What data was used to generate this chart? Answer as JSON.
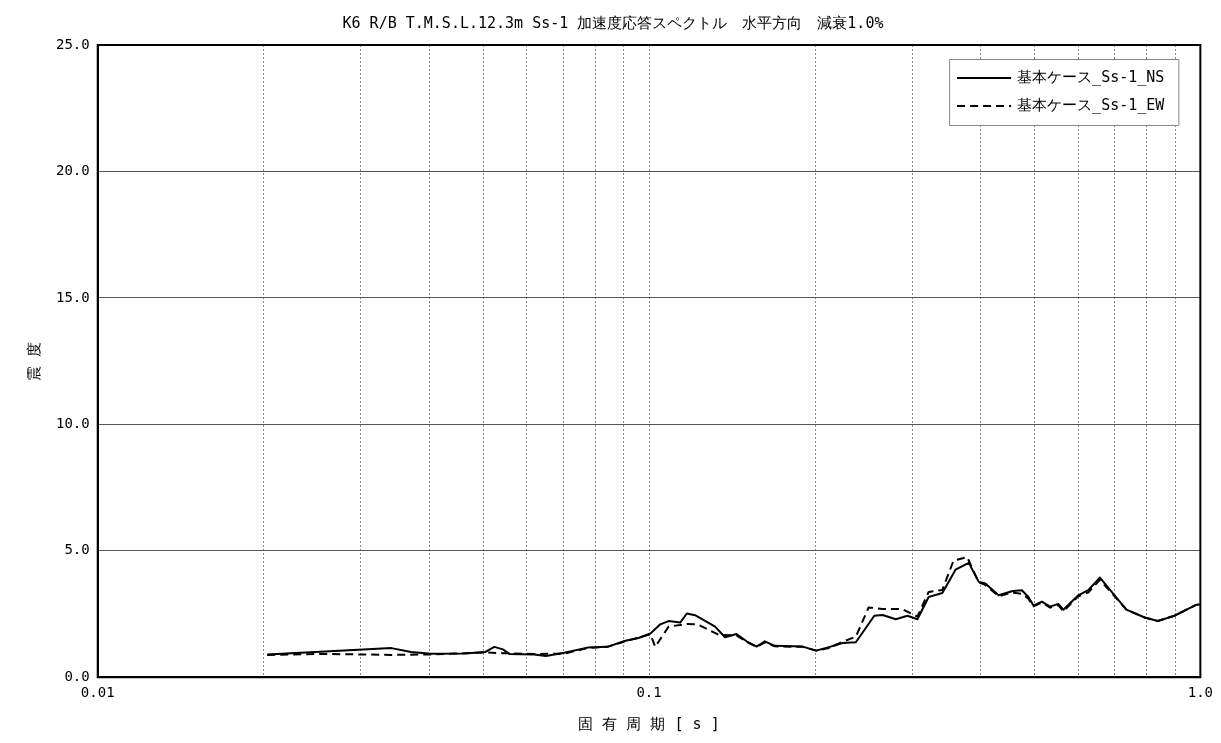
{
  "chart_data": {
    "type": "line",
    "title": "K6 R/B T.M.S.L.12.3m Ss-1 加速度応答スペクトル　水平方向　減衰1.0%",
    "xlabel": "固 有 周 期 [ s ]",
    "ylabel": "震 度",
    "log": "x",
    "xlim": [
      0.01,
      1
    ],
    "xticks": [
      {
        "value": 0.01,
        "label": "0.01"
      },
      {
        "value": 0.02,
        "label": null
      },
      {
        "value": 0.03,
        "label": null
      },
      {
        "value": 0.04,
        "label": null
      },
      {
        "value": 0.05,
        "label": null
      },
      {
        "value": 0.06,
        "label": null
      },
      {
        "value": 0.07,
        "label": null
      },
      {
        "value": 0.08,
        "label": null
      },
      {
        "value": 0.09,
        "label": null
      },
      {
        "value": 0.1,
        "label": "0.1"
      },
      {
        "value": 0.2,
        "label": null
      },
      {
        "value": 0.3,
        "label": null
      },
      {
        "value": 0.4,
        "label": null
      },
      {
        "value": 0.5,
        "label": null
      },
      {
        "value": 0.6,
        "label": null
      },
      {
        "value": 0.7,
        "label": null
      },
      {
        "value": 0.8,
        "label": null
      },
      {
        "value": 0.9,
        "label": null
      },
      {
        "value": 1,
        "label": "1.0"
      }
    ],
    "ylim": [
      0,
      25
    ],
    "yticks": [
      {
        "value": 0,
        "label": "0.0"
      },
      {
        "value": 5,
        "label": "5.0"
      },
      {
        "value": 10,
        "label": "10.0"
      },
      {
        "value": 15,
        "label": "15.0"
      },
      {
        "value": 20,
        "label": "20.0"
      },
      {
        "value": 25,
        "label": "25.0"
      }
    ],
    "grid": true,
    "legend": "top right",
    "marker": "none",
    "series": [
      {
        "name": "基本ケース_Ss-1_NS",
        "color": "#000000",
        "line_style": "solid",
        "x": [
          0.0203,
          0.0303,
          0.0341,
          0.037,
          0.0402,
          0.0463,
          0.0505,
          0.0524,
          0.0543,
          0.0558,
          0.0619,
          0.065,
          0.0702,
          0.0773,
          0.084,
          0.0906,
          0.0957,
          0.1006,
          0.1048,
          0.1085,
          0.1139,
          0.1171,
          0.1212,
          0.1318,
          0.1373,
          0.1441,
          0.1503,
          0.1567,
          0.1622,
          0.169,
          0.19,
          0.201,
          0.212,
          0.2244,
          0.2372,
          0.2562,
          0.2653,
          0.2803,
          0.2943,
          0.3068,
          0.3215,
          0.3404,
          0.3597,
          0.3802,
          0.3963,
          0.4074,
          0.4307,
          0.455,
          0.4745,
          0.4876,
          0.4983,
          0.5158,
          0.534,
          0.5526,
          0.5642,
          0.6007,
          0.626,
          0.6573,
          0.7343,
          0.7925,
          0.8375,
          0.8973,
          0.982,
          1
        ],
        "values": [
          0.9,
          1.1,
          1.15,
          1.0,
          0.93,
          0.94,
          1.0,
          1.2,
          1.1,
          0.92,
          0.9,
          0.84,
          0.97,
          1.17,
          1.2,
          1.44,
          1.55,
          1.73,
          2.09,
          2.22,
          2.16,
          2.52,
          2.45,
          2.0,
          1.58,
          1.71,
          1.42,
          1.21,
          1.42,
          1.24,
          1.21,
          1.05,
          1.19,
          1.35,
          1.38,
          2.43,
          2.46,
          2.29,
          2.43,
          2.29,
          3.17,
          3.33,
          4.25,
          4.52,
          3.77,
          3.71,
          3.24,
          3.4,
          3.44,
          3.17,
          2.83,
          2.99,
          2.79,
          2.9,
          2.67,
          3.24,
          3.44,
          3.94,
          2.67,
          2.36,
          2.22,
          2.43,
          2.86,
          2.88
        ]
      },
      {
        "name": "基本ケース_Ss-1_EW",
        "color": "#000000",
        "line_style": "dashed",
        "x": [
          0.0203,
          0.025,
          0.0303,
          0.034,
          0.04,
          0.0463,
          0.0505,
          0.0543,
          0.0619,
          0.0702,
          0.0773,
          0.084,
          0.0906,
          0.1006,
          0.1026,
          0.1085,
          0.1171,
          0.1225,
          0.1339,
          0.1441,
          0.1503,
          0.1567,
          0.1622,
          0.169,
          0.19,
          0.201,
          0.212,
          0.2244,
          0.2372,
          0.2502,
          0.2653,
          0.2875,
          0.3068,
          0.3215,
          0.3404,
          0.3567,
          0.3776,
          0.3963,
          0.4074,
          0.4307,
          0.455,
          0.4745,
          0.4876,
          0.4983,
          0.5158,
          0.534,
          0.5526,
          0.5642,
          0.6007,
          0.626,
          0.6573,
          0.7343,
          0.7925,
          0.8375,
          0.8973,
          0.982,
          1
        ],
        "values": [
          0.88,
          0.92,
          0.9,
          0.88,
          0.9,
          0.95,
          0.98,
          0.95,
          0.92,
          0.93,
          1.15,
          1.2,
          1.42,
          1.7,
          1.2,
          2.0,
          2.1,
          2.09,
          1.67,
          1.65,
          1.4,
          1.2,
          1.38,
          1.22,
          1.2,
          1.05,
          1.15,
          1.4,
          1.6,
          2.76,
          2.7,
          2.7,
          2.4,
          3.37,
          3.45,
          4.61,
          4.75,
          3.75,
          3.65,
          3.2,
          3.35,
          3.3,
          3.1,
          2.8,
          2.95,
          2.75,
          2.85,
          2.6,
          3.2,
          3.35,
          3.85,
          2.67,
          2.36,
          2.22,
          2.43,
          2.86,
          2.88
        ]
      }
    ]
  }
}
